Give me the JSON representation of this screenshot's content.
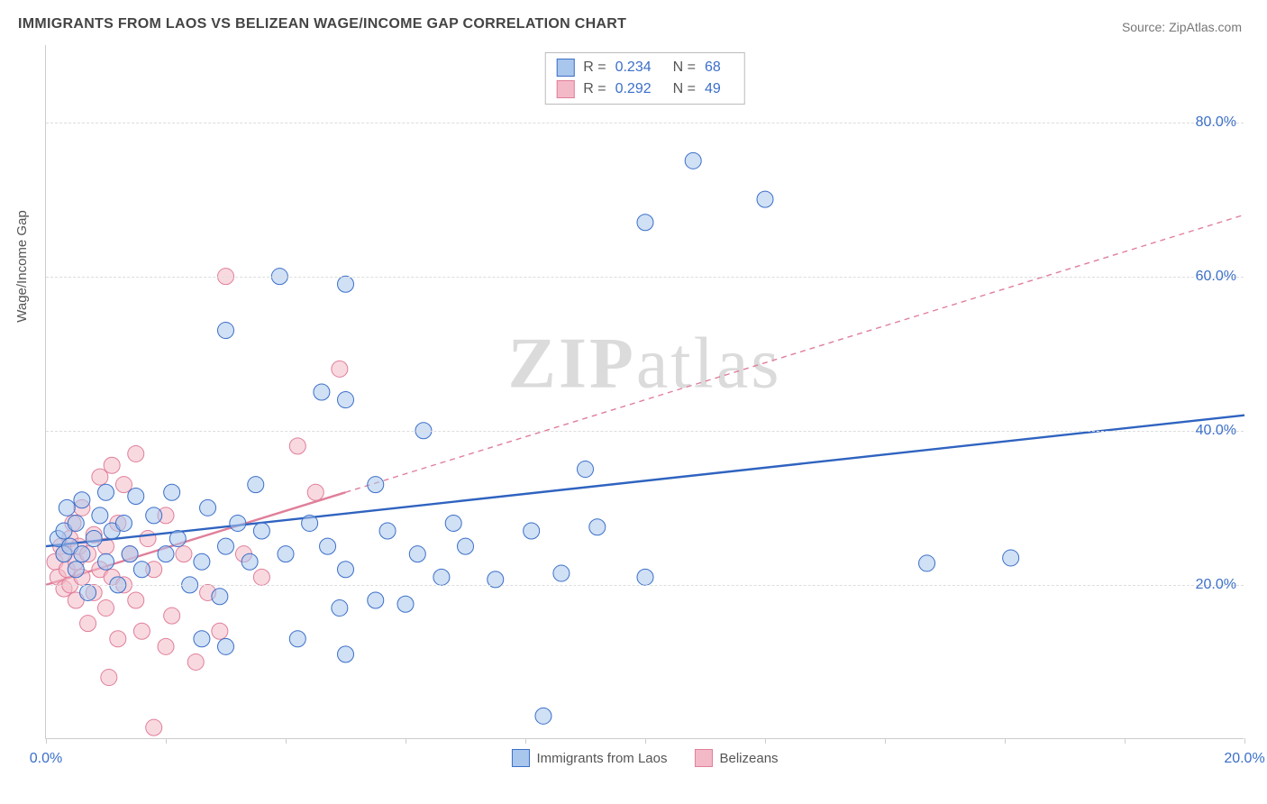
{
  "title": "IMMIGRANTS FROM LAOS VS BELIZEAN WAGE/INCOME GAP CORRELATION CHART",
  "source": "Source: ZipAtlas.com",
  "ylabel": "Wage/Income Gap",
  "watermark_bold": "ZIP",
  "watermark_rest": "atlas",
  "chart": {
    "type": "scatter",
    "background_color": "#ffffff",
    "grid_color": "#dddddd",
    "axis_color": "#cccccc",
    "xlim": [
      0,
      20
    ],
    "ylim": [
      0,
      90
    ],
    "xticks": [
      0,
      2,
      4,
      6,
      8,
      10,
      12,
      14,
      16,
      18,
      20
    ],
    "xtick_labels": {
      "0": "0.0%",
      "20": "20.0%"
    },
    "ytick_labels": [
      {
        "value": 20,
        "label": "20.0%"
      },
      {
        "value": 40,
        "label": "40.0%"
      },
      {
        "value": 60,
        "label": "60.0%"
      },
      {
        "value": 80,
        "label": "80.0%"
      }
    ],
    "tick_label_color": "#3b6fc9",
    "tick_label_fontsize": 16,
    "marker_radius": 9,
    "marker_opacity": 0.55,
    "series": [
      {
        "name": "Immigrants from Laos",
        "fill_color": "#a9c6ec",
        "stroke_color": "#3b6fc9",
        "R": "0.234",
        "N": "68",
        "trend": {
          "x1": 0,
          "y1": 25,
          "x2": 20,
          "y2": 42,
          "color": "#2f63c0",
          "width": 2.4,
          "dash": "none",
          "extrap_dash": "none"
        },
        "extrap_from_x": 0,
        "points": [
          [
            0.2,
            26
          ],
          [
            0.3,
            24
          ],
          [
            0.3,
            27
          ],
          [
            0.35,
            30
          ],
          [
            0.4,
            25
          ],
          [
            0.5,
            22
          ],
          [
            0.5,
            28
          ],
          [
            0.6,
            31
          ],
          [
            0.6,
            24
          ],
          [
            0.7,
            19
          ],
          [
            0.8,
            26
          ],
          [
            0.9,
            29
          ],
          [
            1.0,
            23
          ],
          [
            1.0,
            32
          ],
          [
            1.1,
            27
          ],
          [
            1.2,
            20
          ],
          [
            1.3,
            28
          ],
          [
            1.4,
            24
          ],
          [
            1.5,
            31.5
          ],
          [
            1.6,
            22
          ],
          [
            1.8,
            29
          ],
          [
            2.0,
            24
          ],
          [
            2.1,
            32
          ],
          [
            2.2,
            26
          ],
          [
            2.4,
            20
          ],
          [
            2.6,
            13
          ],
          [
            2.6,
            23
          ],
          [
            2.7,
            30
          ],
          [
            3.0,
            53
          ],
          [
            3.0,
            25
          ],
          [
            3.0,
            12
          ],
          [
            3.2,
            28
          ],
          [
            3.4,
            23
          ],
          [
            3.6,
            27
          ],
          [
            3.9,
            60
          ],
          [
            4.0,
            24
          ],
          [
            4.2,
            13
          ],
          [
            4.4,
            28
          ],
          [
            4.6,
            45
          ],
          [
            4.7,
            25
          ],
          [
            5.0,
            22
          ],
          [
            5.0,
            44
          ],
          [
            5.0,
            59
          ],
          [
            5.0,
            11
          ],
          [
            5.5,
            33
          ],
          [
            5.5,
            18
          ],
          [
            5.7,
            27
          ],
          [
            6.0,
            17.5
          ],
          [
            6.2,
            24
          ],
          [
            6.3,
            40
          ],
          [
            6.6,
            21
          ],
          [
            6.8,
            28
          ],
          [
            7.0,
            25
          ],
          [
            7.5,
            20.7
          ],
          [
            8.1,
            27
          ],
          [
            8.3,
            3
          ],
          [
            8.6,
            21.5
          ],
          [
            9.0,
            35
          ],
          [
            9.2,
            27.5
          ],
          [
            10.0,
            67
          ],
          [
            10.0,
            21
          ],
          [
            10.8,
            75
          ],
          [
            12.0,
            70
          ],
          [
            14.7,
            22.8
          ],
          [
            16.1,
            23.5
          ],
          [
            4.9,
            17
          ],
          [
            3.5,
            33
          ],
          [
            2.9,
            18.5
          ]
        ]
      },
      {
        "name": "Belizeans",
        "fill_color": "#f4b9c7",
        "stroke_color": "#e07f9a",
        "R": "0.292",
        "N": "49",
        "trend": {
          "x1": 0,
          "y1": 20,
          "x2": 5,
          "y2": 32,
          "color": "#e07f9a",
          "width": 2.4,
          "dash": "none",
          "extrap_dash": "6,5"
        },
        "extrap_from_x": 5,
        "extrap_to": {
          "x": 20,
          "y": 68
        },
        "points": [
          [
            0.15,
            23
          ],
          [
            0.2,
            21
          ],
          [
            0.25,
            25
          ],
          [
            0.3,
            19.5
          ],
          [
            0.3,
            24
          ],
          [
            0.35,
            22
          ],
          [
            0.4,
            26
          ],
          [
            0.4,
            20
          ],
          [
            0.45,
            28
          ],
          [
            0.5,
            23
          ],
          [
            0.5,
            18
          ],
          [
            0.55,
            25
          ],
          [
            0.6,
            21
          ],
          [
            0.6,
            30
          ],
          [
            0.7,
            24
          ],
          [
            0.7,
            15
          ],
          [
            0.8,
            26.5
          ],
          [
            0.8,
            19
          ],
          [
            0.9,
            22
          ],
          [
            0.9,
            34
          ],
          [
            1.0,
            17
          ],
          [
            1.0,
            25
          ],
          [
            1.1,
            21
          ],
          [
            1.1,
            35.5
          ],
          [
            1.2,
            13
          ],
          [
            1.2,
            28
          ],
          [
            1.3,
            20
          ],
          [
            1.3,
            33
          ],
          [
            1.4,
            24
          ],
          [
            1.5,
            18
          ],
          [
            1.5,
            37
          ],
          [
            1.6,
            14
          ],
          [
            1.7,
            26
          ],
          [
            1.8,
            1.5
          ],
          [
            1.8,
            22
          ],
          [
            2.0,
            12
          ],
          [
            2.0,
            29
          ],
          [
            2.1,
            16
          ],
          [
            2.3,
            24
          ],
          [
            2.5,
            10
          ],
          [
            2.7,
            19
          ],
          [
            2.9,
            14
          ],
          [
            3.0,
            60
          ],
          [
            3.3,
            24
          ],
          [
            3.6,
            21
          ],
          [
            4.2,
            38
          ],
          [
            4.5,
            32
          ],
          [
            4.9,
            48
          ],
          [
            1.05,
            8
          ]
        ]
      }
    ]
  },
  "legend": {
    "series1_label": "Immigrants from Laos",
    "series2_label": "Belizeans"
  }
}
